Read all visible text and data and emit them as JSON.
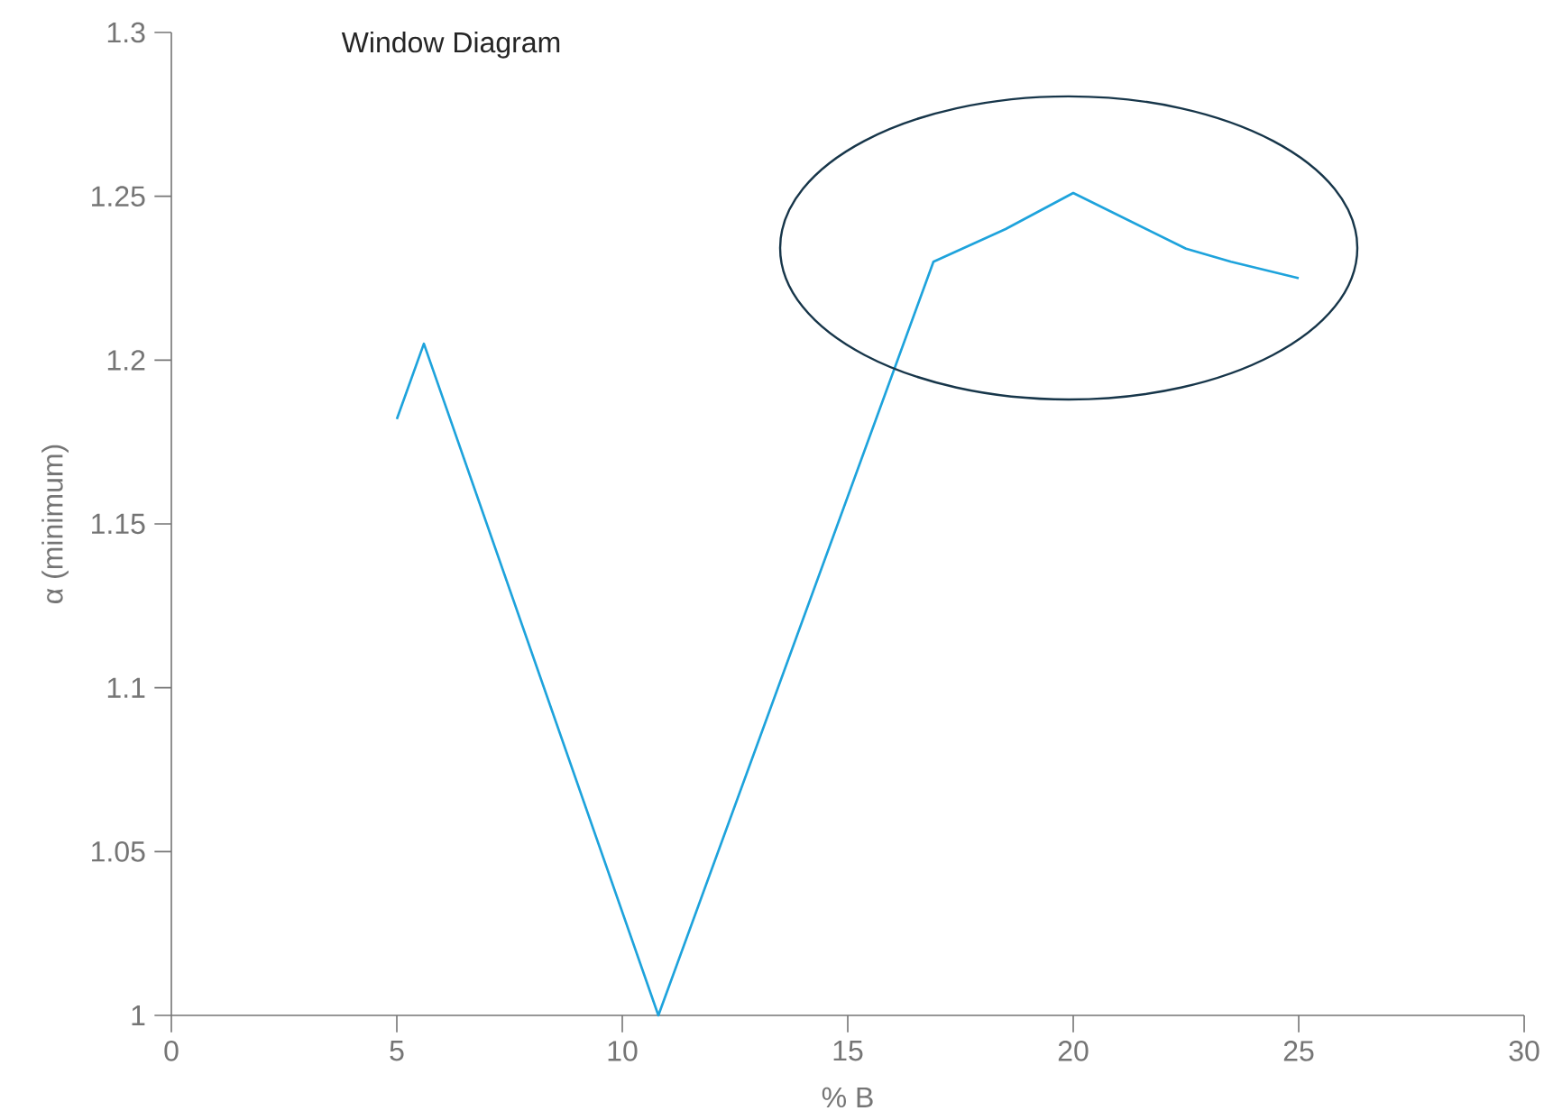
{
  "chart_data": {
    "type": "line",
    "title": "Window Diagram",
    "xlabel": "% B",
    "ylabel": "α (minimum)",
    "x": [
      5,
      5.6,
      10.8,
      16.9,
      18.5,
      20,
      22.5,
      23.5,
      25
    ],
    "values": [
      1.182,
      1.205,
      1.0,
      1.23,
      1.24,
      1.251,
      1.234,
      1.23,
      1.225
    ],
    "color": "#1ea3dc",
    "xlim": [
      0,
      30
    ],
    "ylim": [
      1,
      1.3
    ],
    "xticks": [
      0,
      5,
      10,
      15,
      20,
      25,
      30
    ],
    "yticks": [
      1,
      1.05,
      1.1,
      1.15,
      1.2,
      1.25,
      1.3
    ]
  }
}
